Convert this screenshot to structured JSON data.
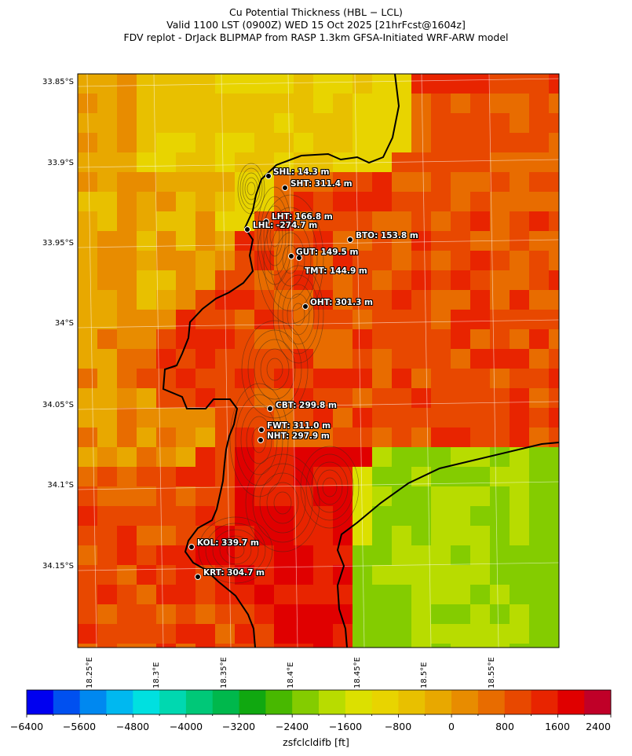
{
  "titles": {
    "line1": "Cu Potential Thickness (HBL − LCL)",
    "line2": "Valid 1100 LST (0900Z) WED 15 Oct 2025 [21hrFcst@1604z]",
    "line3": "FDV replot - DrJack BLIPMAP from RASP 1.3km GFSA-Initiated WRF-ARW model"
  },
  "map": {
    "lat_range": [
      "33.85°S",
      "34.2°S"
    ],
    "lon_range": [
      "18.25°E",
      "18.6°E"
    ],
    "lat_labels": [
      "33.85°S",
      "33.9°S",
      "33.95°S",
      "34°S",
      "34.05°S",
      "34.1°S",
      "34.15°S"
    ],
    "lon_labels": [
      "18.25°E",
      "18.3°E",
      "18.35°E",
      "18.4°E",
      "18.45°E",
      "18.5°E",
      "18.55°E"
    ],
    "gridlines": true,
    "terrain_contours": true,
    "coastline_color": "#000000"
  },
  "stations": [
    {
      "code": "SHL",
      "label": "SHL: 14.3 m",
      "value_m": 14.3
    },
    {
      "code": "SHT",
      "label": "SHT: 311.4 m",
      "value_m": 311.4
    },
    {
      "code": "LHT",
      "label": "LHT: 166.8 m",
      "value_m": 166.8
    },
    {
      "code": "LHL",
      "label": "LHL: -274.7 m",
      "value_m": -274.7
    },
    {
      "code": "BTO",
      "label": "BTO: 153.8 m",
      "value_m": 153.8
    },
    {
      "code": "GUT",
      "label": "GUT: 149.5 m",
      "value_m": 149.5
    },
    {
      "code": "TMT",
      "label": "TMT: 144.9 m",
      "value_m": 144.9
    },
    {
      "code": "OHT",
      "label": "OHT: 301.3 m",
      "value_m": 301.3
    },
    {
      "code": "CBT",
      "label": "CBT: 299.8 m",
      "value_m": 299.8
    },
    {
      "code": "FWT",
      "label": "FWT: 311.0 m",
      "value_m": 311.0
    },
    {
      "code": "NHT",
      "label": "NHT: 297.9 m",
      "value_m": 297.9
    },
    {
      "code": "KOL",
      "label": "KOL: 339.7 m",
      "value_m": 339.7
    },
    {
      "code": "KRT",
      "label": "KRT: 304.7 m",
      "value_m": 304.7
    }
  ],
  "colorbar": {
    "label": "zsfclcldifb [ft]",
    "min": -6400,
    "max": 2400,
    "step": 400,
    "tick_labels": [
      "−6400",
      "−5600",
      "−4800",
      "−4000",
      "−3200",
      "−2400",
      "−1600",
      "−800",
      "0",
      "800",
      "1600",
      "2400"
    ],
    "colors": [
      "#0000f0",
      "#0050f0",
      "#0088f0",
      "#00b8f0",
      "#00e0e0",
      "#00d8b0",
      "#00c878",
      "#00b84c",
      "#10a810",
      "#48b800",
      "#84cc00",
      "#b8dc00",
      "#dce000",
      "#e8d400",
      "#e8c000",
      "#e8a800",
      "#e88c00",
      "#e86c00",
      "#e84800",
      "#e82400",
      "#e00000",
      "#c00028"
    ]
  }
}
